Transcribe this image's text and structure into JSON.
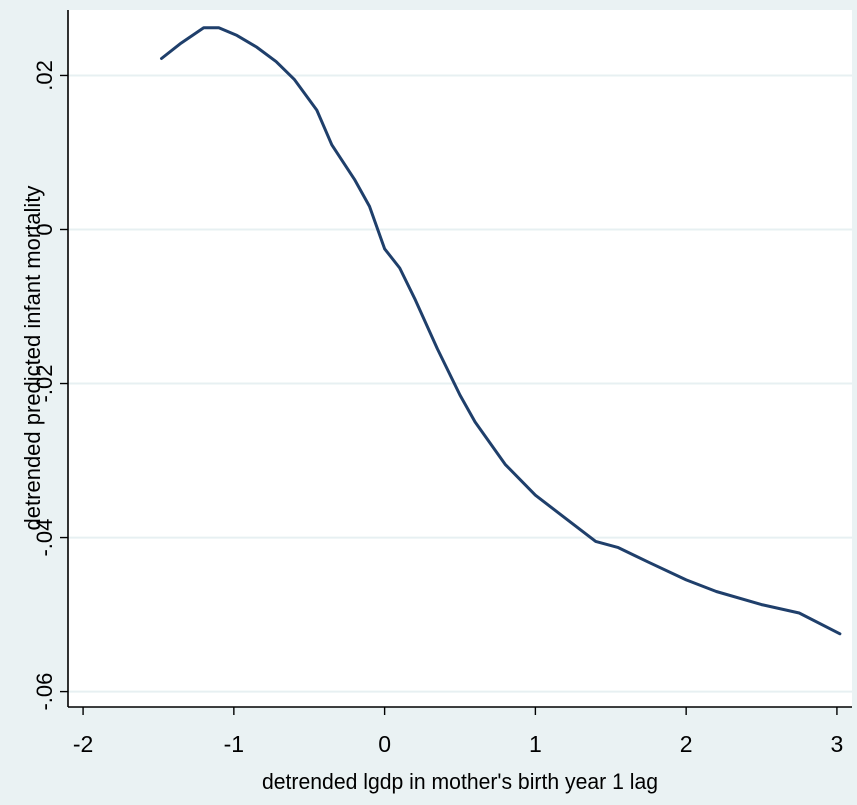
{
  "chart_data": {
    "type": "line",
    "title": "",
    "xlabel": "detrended lgdp in mother's birth year 1 lag",
    "ylabel": "detrended predicted infant mortality",
    "xlim": [
      -2.1,
      3.1
    ],
    "ylim": [
      -0.062,
      0.0285
    ],
    "grid": true,
    "legend": "none",
    "x_ticks": [
      -2,
      -1,
      0,
      1,
      2,
      3
    ],
    "x_tick_labels": [
      "-2",
      "-1",
      "0",
      "1",
      "2",
      "3"
    ],
    "y_ticks": [
      -0.06,
      -0.04,
      -0.02,
      0,
      0.02
    ],
    "y_tick_labels": [
      "-.06",
      "-.04",
      "-.02",
      "0",
      ".02"
    ],
    "series": [
      {
        "color": "#1f3f6b",
        "x": [
          -1.48,
          -1.35,
          -1.2,
          -1.1,
          -0.98,
          -0.85,
          -0.72,
          -0.6,
          -0.45,
          -0.35,
          -0.2,
          -0.1,
          0.0,
          0.1,
          0.2,
          0.35,
          0.5,
          0.6,
          0.8,
          1.0,
          1.2,
          1.4,
          1.55,
          1.75,
          2.0,
          2.2,
          2.5,
          2.75,
          3.02
        ],
        "y": [
          0.0222,
          0.0242,
          0.0262,
          0.0262,
          0.0252,
          0.0237,
          0.0218,
          0.0195,
          0.0155,
          0.011,
          0.0065,
          0.003,
          -0.0025,
          -0.005,
          -0.009,
          -0.0155,
          -0.0215,
          -0.025,
          -0.0305,
          -0.0345,
          -0.0375,
          -0.0405,
          -0.0413,
          -0.0432,
          -0.0455,
          -0.047,
          -0.0487,
          -0.0498,
          -0.0525
        ]
      }
    ]
  }
}
